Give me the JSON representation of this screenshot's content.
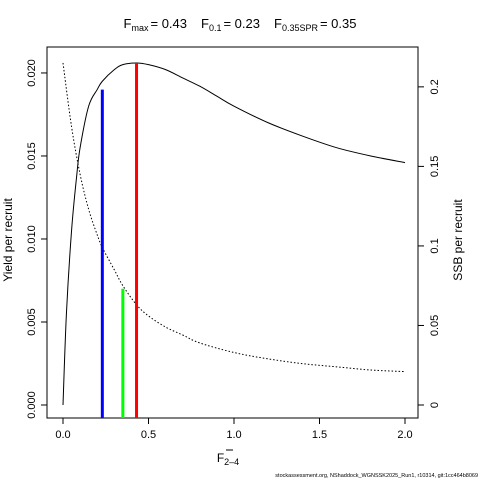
{
  "chart_data": {
    "type": "line",
    "title": {
      "fmax_label": "F",
      "fmax_sub": "max",
      "fmax_value": "= 0.43",
      "f01_label": "F",
      "f01_sub": "0.1",
      "f01_value": "= 0.23",
      "fspr_label": "F",
      "fspr_sub": "0.35SPR",
      "fspr_value": "= 0.35"
    },
    "xlabel": "F",
    "xlabel_sub": "2–4",
    "ylabel_left": "Yield per recruit",
    "ylabel_right": "SSB per recruit",
    "footer": "stockassessment.org, NShaddock_WGNSSK2025_Run1, r10314, git:1cc464b8069",
    "xlim": [
      0,
      2
    ],
    "ylim_left": [
      0,
      0.0206
    ],
    "ylim_right": [
      0,
      0.215
    ],
    "x_ticks": [
      0,
      0.5,
      1,
      1.5,
      2
    ],
    "x_tick_labels": [
      "0.0",
      "0.5",
      "1.0",
      "1.5",
      "2.0"
    ],
    "y_left_ticks": [
      0,
      0.005,
      0.01,
      0.015,
      0.02
    ],
    "y_left_tick_labels": [
      "0.000",
      "0.005",
      "0.010",
      "0.015",
      "0.020"
    ],
    "y_right_ticks": [
      0,
      0.05,
      0.1,
      0.15,
      0.2
    ],
    "y_right_tick_labels": [
      "0",
      "0.05",
      "0.1",
      "0.15",
      "0.2"
    ],
    "series": [
      {
        "axis": "left",
        "style": "solid",
        "x": [
          0,
          0.02,
          0.05,
          0.08,
          0.1,
          0.15,
          0.2,
          0.23,
          0.3,
          0.35,
          0.43,
          0.5,
          0.6,
          0.7,
          0.8,
          0.9,
          1.0,
          1.2,
          1.4,
          1.6,
          1.8,
          2.0
        ],
        "values": [
          0,
          0.0055,
          0.0105,
          0.0138,
          0.0155,
          0.018,
          0.019,
          0.0195,
          0.0202,
          0.0205,
          0.0206,
          0.0205,
          0.0202,
          0.0197,
          0.0192,
          0.0186,
          0.018,
          0.017,
          0.0162,
          0.0155,
          0.015,
          0.0146
        ]
      },
      {
        "axis": "right",
        "style": "dotted",
        "x": [
          0,
          0.05,
          0.1,
          0.15,
          0.2,
          0.23,
          0.3,
          0.35,
          0.43,
          0.5,
          0.6,
          0.7,
          0.8,
          1.0,
          1.2,
          1.4,
          1.6,
          1.8,
          2.0
        ],
        "values": [
          0.215,
          0.175,
          0.145,
          0.123,
          0.107,
          0.099,
          0.085,
          0.075,
          0.063,
          0.056,
          0.049,
          0.044,
          0.039,
          0.033,
          0.029,
          0.026,
          0.024,
          0.022,
          0.021
        ]
      }
    ],
    "reference_lines": [
      {
        "x": 0.23,
        "y_left": 0.019,
        "color": "#0000ff"
      },
      {
        "x": 0.35,
        "y_left": 0.007,
        "color": "#00ff00"
      },
      {
        "x": 0.43,
        "y_left": 0.0206,
        "color": "#ff0000"
      }
    ]
  }
}
